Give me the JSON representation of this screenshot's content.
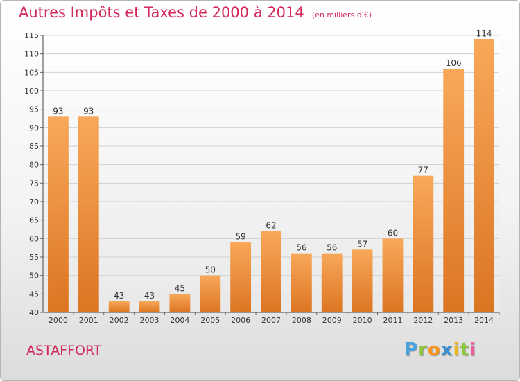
{
  "title": "Autres Impôts et Taxes de 2000 à 2014",
  "unit": "(en milliers d'€)",
  "location": "ASTAFFORT",
  "brand": "Proxiti",
  "colors": {
    "title": "#d2285a",
    "bar_top": "#f8a85a",
    "bar_bottom": "#dc7522",
    "grid": "#d0d0d0"
  },
  "chart_data": {
    "type": "bar",
    "title": "Autres Impôts et Taxes de 2000 à 2014",
    "subtitle": "(en milliers d'€)",
    "categories": [
      "2000",
      "2001",
      "2002",
      "2003",
      "2004",
      "2005",
      "2006",
      "2007",
      "2008",
      "2009",
      "2010",
      "2011",
      "2012",
      "2013",
      "2014"
    ],
    "values": [
      93,
      93,
      43,
      43,
      45,
      50,
      59,
      62,
      56,
      56,
      57,
      60,
      77,
      106,
      114
    ],
    "ylim": [
      40,
      115
    ],
    "yticks": [
      40,
      45,
      50,
      55,
      60,
      65,
      70,
      75,
      80,
      85,
      90,
      95,
      100,
      105,
      110,
      115
    ],
    "grid": true,
    "data_labels": true
  }
}
